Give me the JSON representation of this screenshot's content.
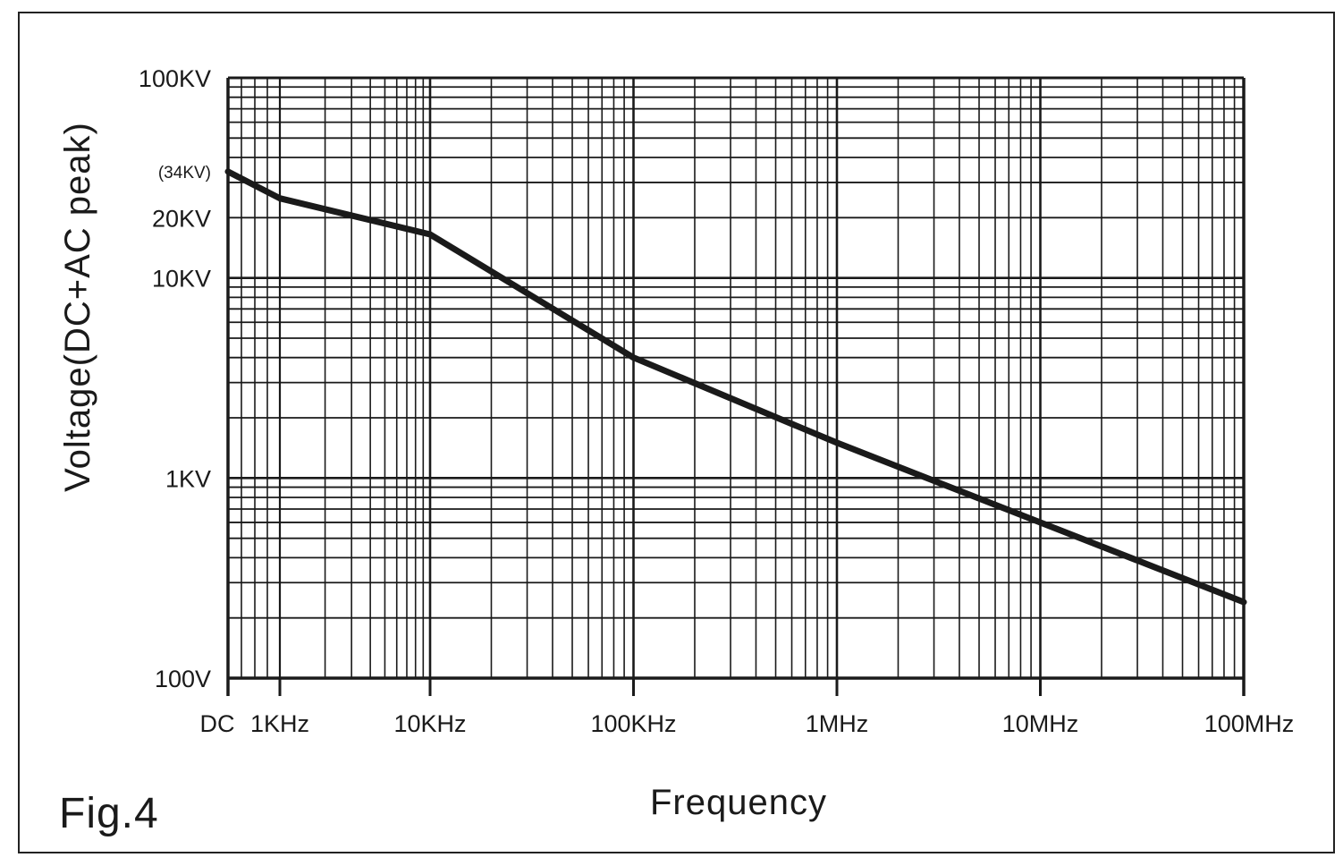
{
  "figure_label": "Fig.4",
  "chart_data": {
    "type": "line",
    "title": "",
    "xlabel": "Frequency",
    "ylabel": "Voltage(DC+AC peak)",
    "x_scale": "log",
    "y_scale": "log",
    "xlim": [
      "DC",
      100000000
    ],
    "ylim": [
      100,
      100000
    ],
    "grid": true,
    "x_ticks": [
      {
        "value": "DC",
        "label": "DC"
      },
      {
        "value": 1000,
        "label": "1KHz"
      },
      {
        "value": 10000,
        "label": "10KHz"
      },
      {
        "value": 100000,
        "label": "100KHz"
      },
      {
        "value": 1000000,
        "label": "1MHz"
      },
      {
        "value": 10000000,
        "label": "10MHz"
      },
      {
        "value": 100000000,
        "label": "100MHz"
      }
    ],
    "y_ticks": [
      {
        "value": 100,
        "label": "100V"
      },
      {
        "value": 1000,
        "label": "1KV"
      },
      {
        "value": 10000,
        "label": "10KV"
      },
      {
        "value": 20000,
        "label": "20KV"
      },
      {
        "value": 34000,
        "label": "(34KV)"
      },
      {
        "value": 100000,
        "label": "100KV"
      }
    ],
    "series": [
      {
        "x": [
          "DC",
          1000,
          10000,
          100000,
          1000000,
          10000000,
          100000000
        ],
        "y": [
          34000,
          25000,
          16500,
          4000,
          1500,
          600,
          240
        ]
      }
    ],
    "line_color": "#1a1a1a",
    "grid_color": "#1a1a1a"
  }
}
